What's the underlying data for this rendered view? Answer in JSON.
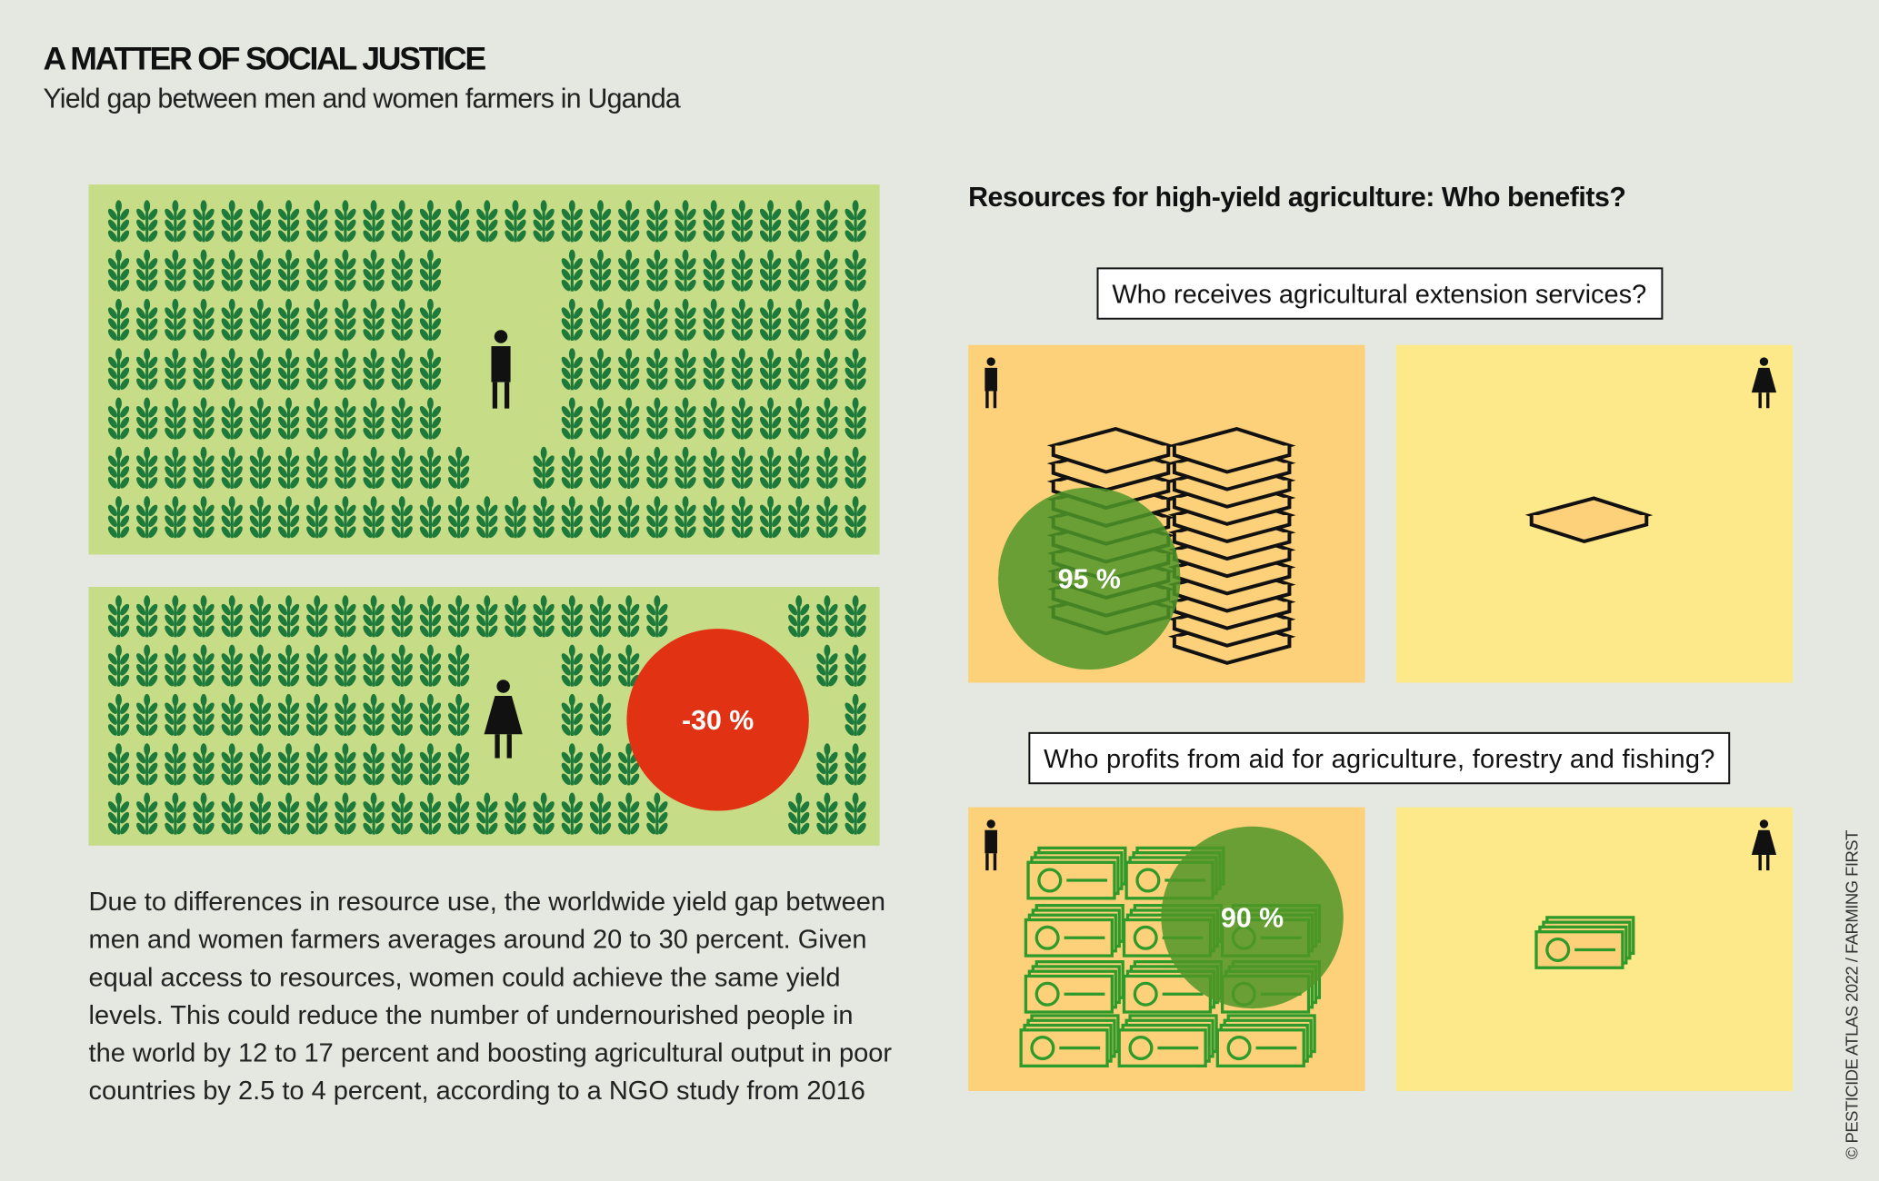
{
  "header": {
    "title": "A MATTER OF SOCIAL JUSTICE",
    "subtitle": "Yield gap between men and women farmers in Uganda"
  },
  "yield_gap": {
    "label": "-30 %"
  },
  "description": [
    "Due to differences in resource use, the worldwide yield gap between",
    "men and women farmers averages around 20 to 30 percent. Given",
    "equal access to resources, women could achieve the same yield",
    "levels. This could reduce the number of undernourished people in",
    "the world by 12 to 17 percent and boosting agricultural output in poor",
    "countries by 2.5 to 4 percent, according to a NGO study from 2016"
  ],
  "resources": {
    "title": "Resources for high-yield agriculture: Who benefits?",
    "questions": [
      {
        "question": "Who receives agricultural extension services?",
        "men_share": "95 %"
      },
      {
        "question": "Who profits from aid for agriculture, forestry and fishing?",
        "men_share": "90 %"
      }
    ]
  },
  "credit": "© PESTICIDE ATLAS 2022 / FARMING FIRST"
}
